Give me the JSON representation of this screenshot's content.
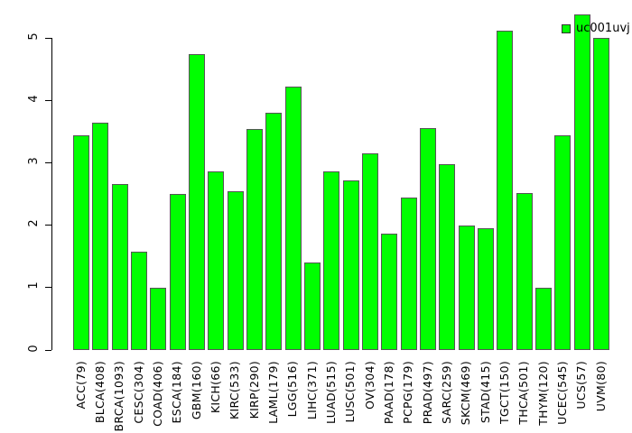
{
  "chart_data": {
    "type": "bar",
    "title": "",
    "xlabel": "",
    "ylabel": "",
    "ylim": [
      0,
      5
    ],
    "yticks": [
      0,
      1,
      2,
      3,
      4,
      5
    ],
    "grid": false,
    "legend": {
      "label": "uc001uvj",
      "location": "top-right"
    },
    "categories": [
      "ACC(79)",
      "BLCA(408)",
      "BRCA(1093)",
      "CESC(304)",
      "COAD(406)",
      "ESCA(184)",
      "GBM(160)",
      "KICH(66)",
      "KIRC(533)",
      "KIRP(290)",
      "LAML(179)",
      "LGG(516)",
      "LIHC(371)",
      "LUAD(515)",
      "LUSC(501)",
      "OV(304)",
      "PAAD(178)",
      "PCPG(179)",
      "PRAD(497)",
      "SARC(259)",
      "SKCM(469)",
      "STAD(415)",
      "TGCT(150)",
      "THCA(501)",
      "THYM(120)",
      "UCEC(545)",
      "UCS(57)",
      "UVM(80)"
    ],
    "values": [
      3.45,
      3.65,
      2.67,
      1.58,
      1.0,
      2.5,
      4.75,
      2.86,
      2.55,
      3.55,
      3.8,
      4.22,
      1.4,
      2.86,
      2.72,
      3.15,
      1.86,
      2.45,
      3.56,
      2.98,
      2.0,
      1.96,
      5.13,
      2.52,
      1.0,
      3.45,
      5.38,
      5.0
    ],
    "colors": {
      "bar_fill": "#00ff00",
      "bar_border": "#555555",
      "axis": "#000000",
      "text": "#000000",
      "background": "#ffffff"
    }
  }
}
